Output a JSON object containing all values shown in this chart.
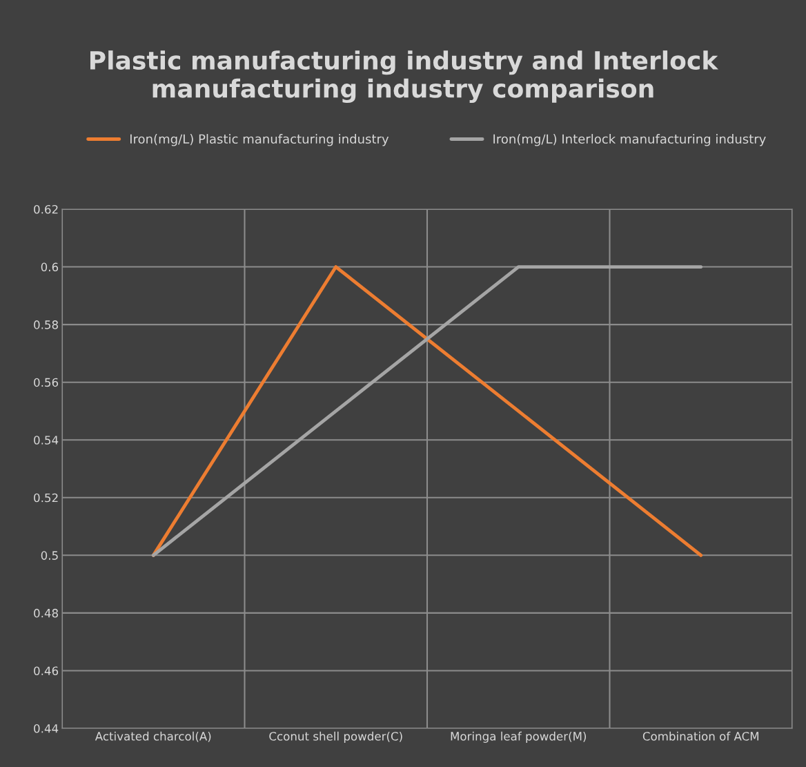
{
  "chart_data": {
    "type": "line",
    "title": "Plastic manufacturing industry and Interlock manufacturing industry comparison",
    "categories": [
      "Activated charcol(A)",
      "Cconut shell powder(C)",
      "Moringa leaf powder(M)",
      "Combination of ACM"
    ],
    "series": [
      {
        "name": "Iron(mg/L) Plastic manufacturing industry",
        "color": "#ed7d31",
        "values": [
          0.5,
          0.6,
          0.55,
          0.5
        ]
      },
      {
        "name": "Iron(mg/L) Interlock manufacturing industry",
        "color": "#a5a5a5",
        "values": [
          0.5,
          0.55,
          0.6,
          0.6
        ]
      }
    ],
    "ylim": [
      0.44,
      0.62
    ],
    "yticks": [
      0.44,
      0.46,
      0.48,
      0.5,
      0.52,
      0.54,
      0.56,
      0.58,
      0.6,
      0.62
    ],
    "grid": true,
    "legend": "top",
    "marker": "none",
    "line_style": "solid"
  }
}
